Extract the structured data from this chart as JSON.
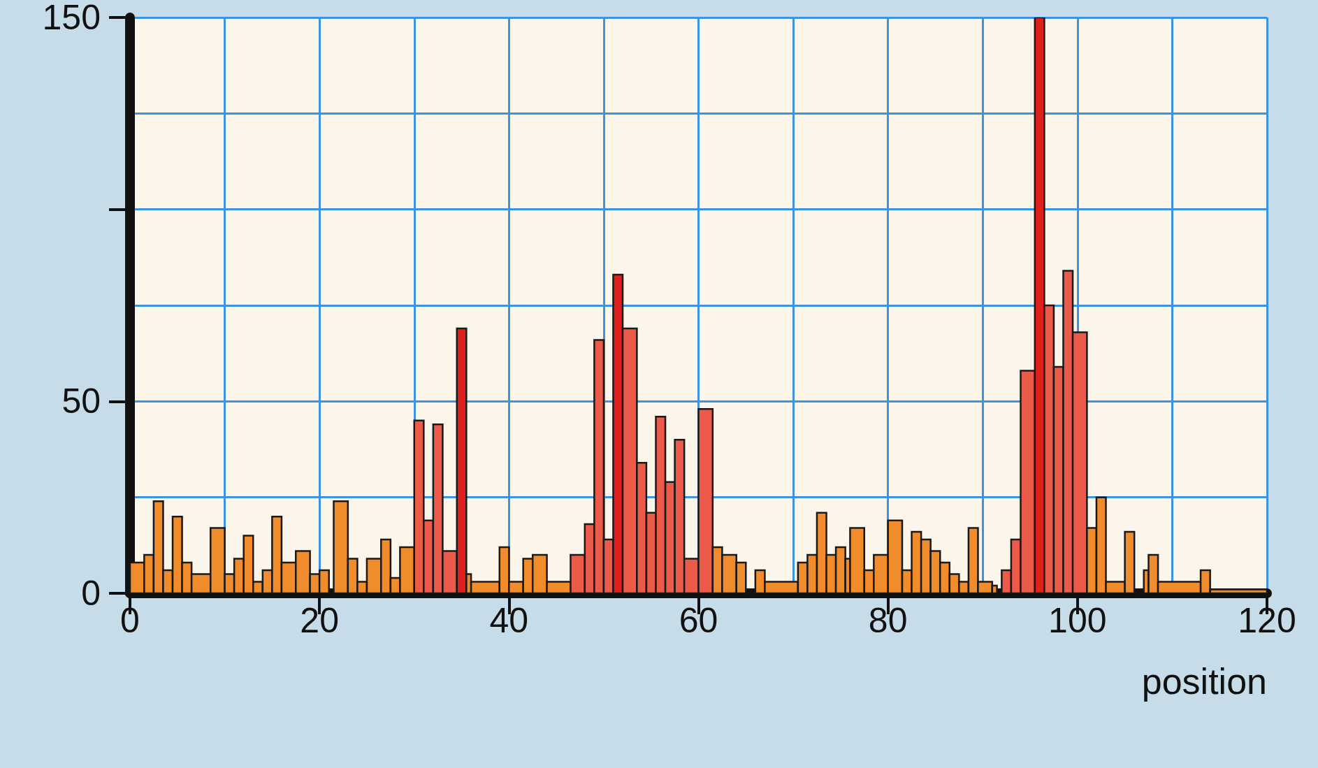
{
  "chart_data": {
    "type": "histogram",
    "xlabel": "position",
    "bins": [
      0,
      1.5,
      2.5,
      3.5,
      4.5,
      5.5,
      6.5,
      8.5,
      10,
      11,
      12,
      13,
      14,
      15,
      16,
      17.5,
      19,
      20,
      21,
      21.5,
      23,
      24,
      25,
      26.5,
      27.5,
      28.5,
      30,
      31,
      32,
      33,
      34.5,
      35.5,
      36,
      39,
      40,
      41.5,
      42.5,
      44,
      46.5,
      48,
      49,
      50,
      51,
      52,
      53.5,
      54.5,
      55.5,
      56.5,
      57.5,
      58.5,
      60,
      61.5,
      62.5,
      64,
      65,
      66,
      67,
      70.5,
      71.5,
      72.5,
      73.5,
      74.5,
      75.5,
      76,
      77.5,
      78.5,
      80,
      81.5,
      82.5,
      83.5,
      84.5,
      85.5,
      86.5,
      87.5,
      88.5,
      89.5,
      91,
      91.5,
      92,
      93,
      94,
      95.5,
      96.5,
      97.5,
      98.5,
      99.5,
      101,
      102,
      103,
      105,
      106,
      107,
      107.5,
      108.5,
      113,
      114,
      120
    ],
    "values": [
      8,
      10,
      24,
      6,
      20,
      8,
      5,
      17,
      5,
      9,
      15,
      3,
      6,
      20,
      8,
      11,
      5,
      6,
      0,
      24,
      9,
      3,
      9,
      14,
      4,
      12,
      45,
      19,
      44,
      11,
      69,
      5,
      3,
      12,
      3,
      9,
      10,
      3,
      10,
      18,
      66,
      14,
      83,
      69,
      34,
      21,
      46,
      29,
      40,
      9,
      48,
      12,
      10,
      8,
      0,
      6,
      3,
      8,
      10,
      21,
      10,
      12,
      9,
      17,
      6,
      10,
      19,
      6,
      16,
      14,
      11,
      8,
      5,
      3,
      17,
      3,
      2,
      0,
      6,
      14,
      58,
      150,
      75,
      59,
      84,
      68,
      17,
      25,
      3,
      16,
      0,
      6,
      10,
      3,
      6,
      1
    ],
    "colors": [
      "#f08c2c",
      "#f08c2c",
      "#f08c2c",
      "#f08c2c",
      "#f08c2c",
      "#f08c2c",
      "#f08c2c",
      "#f08c2c",
      "#f08c2c",
      "#f08c2c",
      "#f08c2c",
      "#f08c2c",
      "#f08c2c",
      "#f08c2c",
      "#f08c2c",
      "#f08c2c",
      "#f08c2c",
      "#f08c2c",
      "#f08c2c",
      "#f08c2c",
      "#f08c2c",
      "#f08c2c",
      "#f08c2c",
      "#f08c2c",
      "#f08c2c",
      "#f08c2c",
      "#ec5a4a",
      "#ec5a4a",
      "#ec5a4a",
      "#ec5a4a",
      "#e0201c",
      "#f08c2c",
      "#f08c2c",
      "#f08c2c",
      "#f08c2c",
      "#f08c2c",
      "#f08c2c",
      "#f08c2c",
      "#ec5a4a",
      "#ec5a4a",
      "#ec5a4a",
      "#ec5a4a",
      "#e0201c",
      "#ec5a4a",
      "#ec5a4a",
      "#ec5a4a",
      "#ec5a4a",
      "#ec5a4a",
      "#ec5a4a",
      "#ec5a4a",
      "#ec5a4a",
      "#f08c2c",
      "#f08c2c",
      "#f08c2c",
      "#f08c2c",
      "#f08c2c",
      "#f08c2c",
      "#f08c2c",
      "#f08c2c",
      "#f08c2c",
      "#f08c2c",
      "#f08c2c",
      "#f08c2c",
      "#f08c2c",
      "#f08c2c",
      "#f08c2c",
      "#f08c2c",
      "#f08c2c",
      "#f08c2c",
      "#f08c2c",
      "#f08c2c",
      "#f08c2c",
      "#f08c2c",
      "#f08c2c",
      "#f08c2c",
      "#f08c2c",
      "#f08c2c",
      "#f08c2c",
      "#ec5a4a",
      "#ec5a4a",
      "#ec5a4a",
      "#e0201c",
      "#ec5a4a",
      "#ec5a4a",
      "#ec5a4a",
      "#ec5a4a",
      "#f08c2c",
      "#f08c2c",
      "#f08c2c",
      "#f08c2c",
      "#f08c2c",
      "#f08c2c",
      "#f08c2c",
      "#f08c2c",
      "#f08c2c",
      "#f08c2c"
    ],
    "xlim": [
      0,
      120
    ],
    "xticks": [
      0,
      20,
      40,
      60,
      80,
      100,
      120
    ],
    "ylim": [
      0,
      150
    ],
    "yticks": [
      0,
      50,
      {
        "value": 100,
        "label": null
      },
      150
    ],
    "grid": true
  }
}
